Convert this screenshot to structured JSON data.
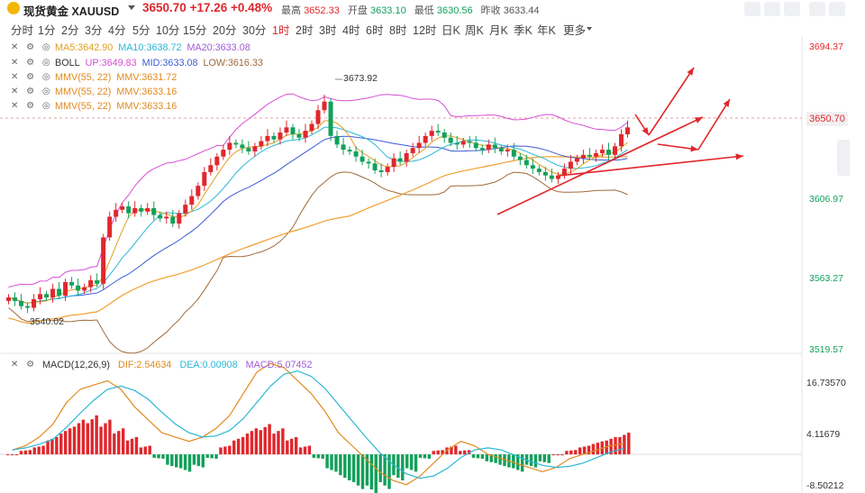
{
  "header": {
    "name": "现货黄金 XAUUSD",
    "price": "3650.70",
    "change": "+17.26",
    "change_pct": "+0.48%",
    "high_label": "最高",
    "high": "3652.33",
    "open_label": "开盘",
    "open": "3633.10",
    "low_label": "最低",
    "low": "3630.56",
    "prev_close_label": "昨收",
    "prev_close": "3633.44"
  },
  "periods": [
    "分时",
    "1分",
    "2分",
    "3分",
    "4分",
    "5分",
    "10分",
    "15分",
    "20分",
    "30分",
    "1时",
    "2时",
    "3时",
    "4时",
    "6时",
    "8时",
    "12时",
    "日K",
    "周K",
    "月K",
    "季K",
    "年K",
    "更多"
  ],
  "active_period": "1时",
  "indicators": [
    {
      "parts": [
        {
          "t": "MA5:3642.90",
          "c": "#e0a020"
        },
        {
          "t": "MA10:3638.72",
          "c": "#2ab7d6"
        },
        {
          "t": "MA20:3633.08",
          "c": "#a05cd6"
        }
      ]
    },
    {
      "parts": [
        {
          "t": "BOLL",
          "c": "#333333"
        },
        {
          "t": "UP:3649.83",
          "c": "#d64fd6"
        },
        {
          "t": "MID:3633.08",
          "c": "#3b5bd6"
        },
        {
          "t": "LOW:3616.33",
          "c": "#a06a3a"
        }
      ]
    },
    {
      "parts": [
        {
          "t": "MMV(55, 22)",
          "c": "#e08a20"
        },
        {
          "t": "MMV:3631.72",
          "c": "#e08a20"
        }
      ]
    },
    {
      "parts": [
        {
          "t": "MMV(55, 22)",
          "c": "#e08a20"
        },
        {
          "t": "MMV:3633.16",
          "c": "#e08a20"
        }
      ]
    },
    {
      "parts": [
        {
          "t": "MMV(55, 22)",
          "c": "#e08a20"
        },
        {
          "t": "MMV:3633.16",
          "c": "#e08a20"
        }
      ]
    }
  ],
  "price_axis": [
    "3694.37",
    "3650.70",
    "3606.97",
    "3563.27",
    "3519.57"
  ],
  "macd_axis": [
    "16.73570",
    "4.11679",
    "-8.50212"
  ],
  "macd_legend": {
    "name": "MACD(12,26,9)",
    "dif": "DIF:2.54634",
    "dea": "DEA:0.00908",
    "macd": "MACD:5.07452"
  },
  "chart_data": {
    "type": "candlestick",
    "symbol": "XAUUSD",
    "ylim": [
      3519.57,
      3700.0
    ],
    "annotations": [
      {
        "text": "3673.92",
        "kind": "high marker"
      },
      {
        "text": "3540.02",
        "kind": "low marker"
      }
    ],
    "close_series": [
      3551,
      3549,
      3546,
      3545,
      3550,
      3553,
      3551,
      3556,
      3552,
      3560,
      3558,
      3555,
      3557,
      3561,
      3559,
      3586,
      3598,
      3602,
      3604,
      3600,
      3603,
      3601,
      3603,
      3599,
      3597,
      3598,
      3594,
      3600,
      3605,
      3610,
      3616,
      3624,
      3628,
      3633,
      3637,
      3641,
      3640,
      3638,
      3636,
      3639,
      3642,
      3645,
      3643,
      3647,
      3650,
      3646,
      3644,
      3648,
      3652,
      3660,
      3665,
      3645,
      3640,
      3637,
      3636,
      3633,
      3630,
      3629,
      3625,
      3624,
      3627,
      3632,
      3630,
      3635,
      3638,
      3641,
      3645,
      3648,
      3647,
      3644,
      3641,
      3640,
      3642,
      3641,
      3638,
      3637,
      3640,
      3638,
      3636,
      3637,
      3633,
      3631,
      3628,
      3626,
      3624,
      3622,
      3620,
      3622,
      3626,
      3630,
      3632,
      3634,
      3633,
      3635,
      3637,
      3634,
      3639,
      3646,
      3650
    ],
    "macd": {
      "dif_approx": [
        1,
        2,
        4,
        7,
        12,
        15,
        16,
        17,
        15,
        11,
        8,
        5,
        4,
        3,
        4,
        6,
        9,
        14,
        19,
        21,
        20,
        17,
        14,
        10,
        5,
        2,
        -1,
        -4,
        -6,
        -7,
        -5,
        -2,
        1,
        3,
        2,
        0,
        -1,
        -2,
        -3,
        -4,
        -3,
        -1,
        0,
        1,
        2,
        2.5
      ],
      "hist_approx": [
        0,
        1,
        2,
        4,
        6,
        8,
        9,
        8,
        6,
        4,
        2,
        -1,
        -3,
        -4,
        -3,
        -1,
        2,
        4,
        6,
        7,
        6,
        4,
        2,
        -1,
        -4,
        -6,
        -8,
        -9,
        -8,
        -6,
        -4,
        -1,
        1,
        2,
        1,
        -1,
        -2,
        -3,
        -4,
        -3,
        -2,
        0,
        1,
        2,
        3,
        4,
        5
      ]
    }
  }
}
